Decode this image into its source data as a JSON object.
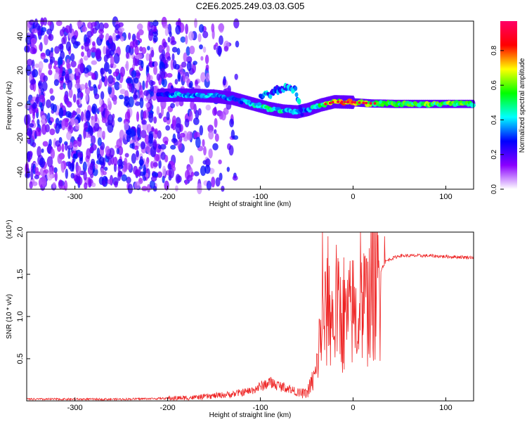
{
  "figure": {
    "title": "C2E6.2025.249.03.03.G05"
  },
  "chart_data": [
    {
      "type": "heatmap",
      "title": "C2E6.2025.249.03.03.G05",
      "xlabel": "Height of straight line (km)",
      "ylabel": "Frequency (Hz)",
      "xlim": [
        -352,
        130
      ],
      "ylim": [
        -50,
        49
      ],
      "xticks": [
        -300,
        -200,
        -100,
        0,
        100
      ],
      "xtick_labels": [
        "-300",
        "-200",
        "-100",
        "0",
        "100"
      ],
      "yticks": [
        -40,
        -20,
        0,
        20,
        40
      ],
      "ytick_labels": [
        "-40",
        "-20",
        "0",
        "20",
        "40"
      ],
      "colorbar": {
        "label": "Normalized spectral amplitude",
        "range": [
          0,
          0.97
        ],
        "ticks": [
          0.0,
          0.2,
          0.4,
          0.6,
          0.8
        ],
        "tick_labels": [
          "0.0",
          "0.2",
          "0.4",
          "0.6",
          "0.8"
        ],
        "colors": [
          "#ffffff",
          "#8a00ff",
          "#0000ff",
          "#00ffff",
          "#00ff00",
          "#ffff00",
          "#ff0000",
          "#ff0066"
        ]
      },
      "noise_region": {
        "x_range": [
          -352,
          -125
        ],
        "amplitude_range": [
          0.05,
          0.3
        ]
      },
      "ridge": {
        "x": [
          -210,
          -190,
          -170,
          -150,
          -130,
          -110,
          -90,
          -75,
          -60,
          -48,
          -35,
          -20,
          0,
          20,
          50,
          80,
          130
        ],
        "y": [
          5.2,
          5.5,
          5.3,
          4.8,
          3.5,
          0.5,
          -2.5,
          -4.0,
          -4.5,
          -3.0,
          -0.5,
          1.5,
          1.2,
          0.5,
          0.2,
          0.2,
          0.2
        ],
        "amplitude": [
          0.25,
          0.45,
          0.4,
          0.38,
          0.35,
          0.45,
          0.5,
          0.45,
          0.4,
          0.4,
          0.55,
          0.8,
          0.7,
          0.6,
          0.55,
          0.6,
          0.6
        ]
      },
      "branch": {
        "x": [
          -100,
          -90,
          -80,
          -70,
          -62,
          -55
        ],
        "y": [
          4.0,
          6.0,
          9.0,
          10.0,
          8.5,
          -6.0
        ]
      }
    },
    {
      "type": "line",
      "xlabel": "Height of straight line (km)",
      "ylabel": "SNR (10 * v/v)",
      "y_multiplier": "(x10⁴)",
      "xlim": [
        -352,
        130
      ],
      "ylim": [
        0,
        2.0
      ],
      "xticks": [
        -300,
        -200,
        -100,
        0,
        100
      ],
      "xtick_labels": [
        "-300",
        "-200",
        "-100",
        "0",
        "100"
      ],
      "yticks": [
        0.5,
        1.0,
        1.5,
        2.0
      ],
      "ytick_labels": [
        "0.5",
        "1.0",
        "1.5",
        "2.0"
      ],
      "color": "#ee2222",
      "series": [
        {
          "name": "SNR",
          "x": [
            -352,
            -300,
            -250,
            -200,
            -170,
            -150,
            -130,
            -110,
            -90,
            -80,
            -70,
            -60,
            -50,
            -40,
            -35,
            -30,
            -25,
            -20,
            -15,
            -10,
            -5,
            0,
            5,
            10,
            15,
            20,
            25,
            30,
            35,
            40,
            50,
            60,
            80,
            100,
            130
          ],
          "y": [
            0.02,
            0.02,
            0.02,
            0.03,
            0.04,
            0.06,
            0.08,
            0.12,
            0.22,
            0.18,
            0.15,
            0.1,
            0.1,
            0.35,
            0.9,
            1.1,
            1.2,
            1.0,
            1.2,
            1.0,
            1.1,
            1.2,
            1.0,
            1.3,
            1.25,
            1.45,
            1.5,
            1.55,
            1.65,
            1.68,
            1.72,
            1.72,
            1.72,
            1.71,
            1.7
          ],
          "spikes": [
            {
              "x": -33,
              "y": 2.0
            },
            {
              "x": -27,
              "y": 1.95
            },
            {
              "x": -18,
              "y": 1.85
            },
            {
              "x": -10,
              "y": 1.7
            },
            {
              "x": 8,
              "y": 2.0
            },
            {
              "x": 16,
              "y": 1.65
            },
            {
              "x": 34,
              "y": 1.95
            }
          ]
        }
      ]
    }
  ]
}
